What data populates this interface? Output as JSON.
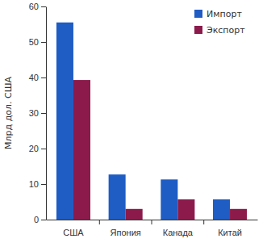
{
  "chart_data": {
    "type": "bar",
    "y_label": "Млрд дол. США",
    "categories": [
      "США",
      "Япония",
      "Канада",
      "Китай"
    ],
    "series": [
      {
        "name": "Импорт",
        "color": "#1f5cc4",
        "values": [
          55.5,
          12.7,
          11.3,
          5.7
        ]
      },
      {
        "name": "Экспорт",
        "color": "#8c1a4b",
        "values": [
          39.3,
          3.0,
          5.7,
          3.0
        ]
      }
    ],
    "ylim": [
      0,
      60
    ],
    "yticks": [
      0,
      10,
      20,
      30,
      40,
      50,
      60
    ],
    "grid": false,
    "legend": "top-right"
  }
}
